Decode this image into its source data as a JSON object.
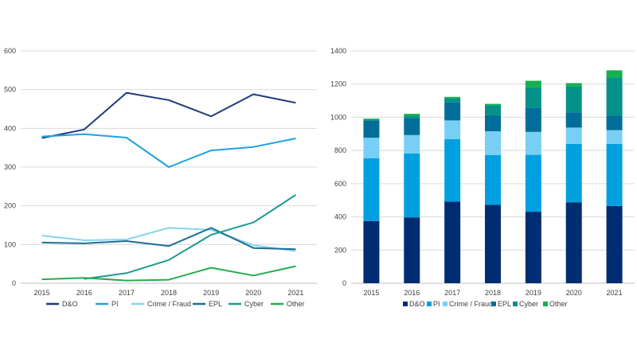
{
  "chart_data": [
    {
      "type": "line",
      "categories": [
        "2015",
        "2016",
        "2017",
        "2018",
        "2019",
        "2020",
        "2021"
      ],
      "ylim": [
        0,
        600
      ],
      "yticks": [
        0,
        100,
        200,
        300,
        400,
        500,
        600
      ],
      "grid": true,
      "legend": "bottom",
      "series": [
        {
          "name": "D&O",
          "color": "#1f3a7d",
          "values": [
            375,
            397,
            492,
            473,
            431,
            488,
            466
          ]
        },
        {
          "name": "PI",
          "color": "#1fa1dc",
          "values": [
            379,
            385,
            376,
            300,
            343,
            352,
            374
          ]
        },
        {
          "name": "Crime / Fraud",
          "color": "#86d4f2",
          "values": [
            123,
            111,
            113,
            143,
            138,
            98,
            83
          ]
        },
        {
          "name": "EPL",
          "color": "#1c6f94",
          "values": [
            105,
            103,
            109,
            96,
            143,
            91,
            88
          ]
        },
        {
          "name": "Cyber",
          "color": "#1b9a8f",
          "values": [
            null,
            11,
            26,
            60,
            125,
            157,
            228
          ]
        },
        {
          "name": "Other",
          "color": "#23ad4f",
          "values": [
            10,
            14,
            7,
            9,
            40,
            20,
            44
          ]
        }
      ]
    },
    {
      "type": "bar",
      "stacked": true,
      "categories": [
        "2015",
        "2016",
        "2017",
        "2018",
        "2019",
        "2020",
        "2021"
      ],
      "ylim": [
        0,
        1400
      ],
      "yticks": [
        0,
        200,
        400,
        600,
        800,
        1000,
        1200,
        1400
      ],
      "grid": true,
      "legend": "bottom",
      "series": [
        {
          "name": "D&O",
          "color": "#002d72",
          "values": [
            375,
            397,
            492,
            473,
            431,
            488,
            466
          ]
        },
        {
          "name": "PI",
          "color": "#00a0e0",
          "values": [
            379,
            385,
            376,
            300,
            343,
            352,
            374
          ]
        },
        {
          "name": "Crime / Fraud",
          "color": "#78cff5",
          "values": [
            123,
            111,
            113,
            143,
            138,
            98,
            83
          ]
        },
        {
          "name": "EPL",
          "color": "#006e98",
          "values": [
            105,
            103,
            109,
            96,
            143,
            91,
            88
          ]
        },
        {
          "name": "Cyber",
          "color": "#03918a",
          "values": [
            0,
            11,
            26,
            60,
            125,
            157,
            228
          ]
        },
        {
          "name": "Other",
          "color": "#14b04c",
          "values": [
            10,
            14,
            7,
            9,
            40,
            20,
            44
          ]
        }
      ]
    }
  ]
}
